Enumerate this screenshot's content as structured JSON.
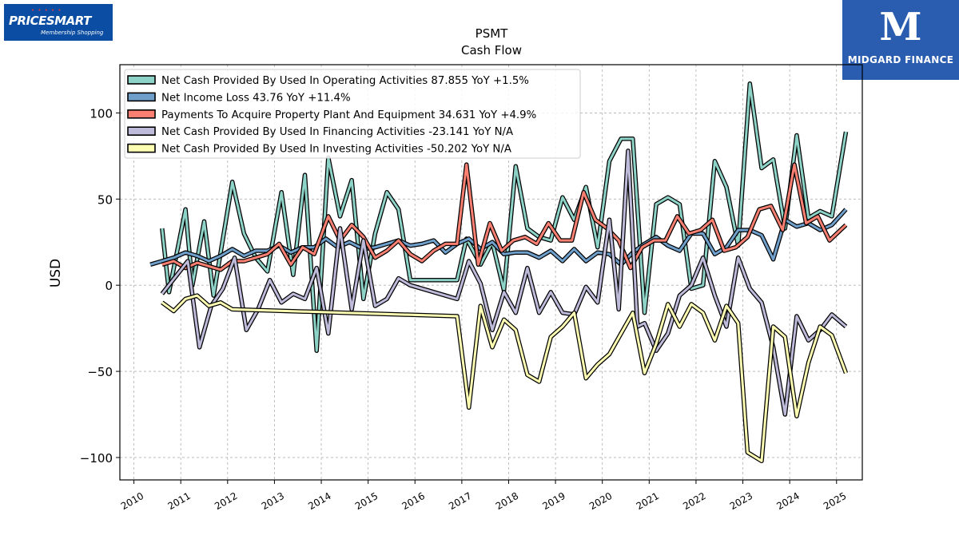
{
  "logos": {
    "left_brand": "PRICESMART",
    "left_tagline": "Membership Shopping",
    "right_name": "MIDGARD FINANCE"
  },
  "chart_data": {
    "type": "line",
    "title": "PSMT",
    "subtitle": "Cash Flow",
    "xlabel": "",
    "ylabel": "USD",
    "xlim": [
      2009.7,
      2025.55
    ],
    "ylim": [
      -113,
      128
    ],
    "yticks": [
      -100,
      -50,
      0,
      50,
      100
    ],
    "ytick_labels": [
      "−100",
      "−50",
      "0",
      "50",
      "100"
    ],
    "xticks": [
      2010,
      2011,
      2012,
      2013,
      2014,
      2015,
      2016,
      2017,
      2018,
      2019,
      2020,
      2021,
      2022,
      2023,
      2024,
      2025
    ],
    "grid": true,
    "legend_position": "top-left",
    "series": [
      {
        "name": "Net Cash Provided By Used In Operating Activities  87.855 YoY +1.5%",
        "color": "#8dd3c7",
        "points": [
          [
            2010.6,
            33
          ],
          [
            2010.75,
            -4
          ],
          [
            2011.1,
            44
          ],
          [
            2011.25,
            0
          ],
          [
            2011.5,
            37
          ],
          [
            2011.7,
            -6
          ],
          [
            2012.1,
            60
          ],
          [
            2012.35,
            30
          ],
          [
            2012.6,
            16
          ],
          [
            2012.85,
            8
          ],
          [
            2013.15,
            54
          ],
          [
            2013.4,
            6
          ],
          [
            2013.65,
            64
          ],
          [
            2013.9,
            -38
          ],
          [
            2014.15,
            74
          ],
          [
            2014.4,
            40
          ],
          [
            2014.65,
            61
          ],
          [
            2014.9,
            -8
          ],
          [
            2015.15,
            30
          ],
          [
            2015.4,
            54
          ],
          [
            2015.65,
            44
          ],
          [
            2015.9,
            3
          ],
          [
            2016.9,
            3
          ],
          [
            2017.1,
            27
          ],
          [
            2017.4,
            12
          ],
          [
            2017.65,
            25
          ],
          [
            2017.9,
            -3
          ],
          [
            2018.15,
            69
          ],
          [
            2018.4,
            33
          ],
          [
            2018.65,
            28
          ],
          [
            2018.9,
            26
          ],
          [
            2019.15,
            51
          ],
          [
            2019.4,
            38
          ],
          [
            2019.65,
            57
          ],
          [
            2019.9,
            22
          ],
          [
            2020.15,
            72
          ],
          [
            2020.4,
            85
          ],
          [
            2020.65,
            85
          ],
          [
            2020.9,
            -16
          ],
          [
            2021.15,
            47
          ],
          [
            2021.4,
            51
          ],
          [
            2021.65,
            47
          ],
          [
            2021.9,
            -2
          ],
          [
            2022.15,
            0
          ],
          [
            2022.4,
            72
          ],
          [
            2022.65,
            57
          ],
          [
            2022.9,
            23
          ],
          [
            2023.15,
            117
          ],
          [
            2023.4,
            68
          ],
          [
            2023.65,
            73
          ],
          [
            2023.9,
            33
          ],
          [
            2024.15,
            87
          ],
          [
            2024.4,
            39
          ],
          [
            2024.65,
            43
          ],
          [
            2024.9,
            40
          ],
          [
            2025.2,
            89
          ]
        ]
      },
      {
        "name": "Net Income Loss  43.76 YoY +11.4%",
        "color": "#6fa0cc",
        "points": [
          [
            2010.35,
            12
          ],
          [
            2010.6,
            14
          ],
          [
            2010.85,
            16
          ],
          [
            2011.1,
            19
          ],
          [
            2011.35,
            17
          ],
          [
            2011.6,
            14
          ],
          [
            2011.85,
            17
          ],
          [
            2012.1,
            21
          ],
          [
            2012.35,
            17
          ],
          [
            2012.6,
            20
          ],
          [
            2012.85,
            20
          ],
          [
            2013.1,
            23
          ],
          [
            2013.35,
            19
          ],
          [
            2013.6,
            22
          ],
          [
            2013.85,
            22
          ],
          [
            2014.1,
            27
          ],
          [
            2014.35,
            22
          ],
          [
            2014.6,
            25
          ],
          [
            2014.9,
            21
          ],
          [
            2015.15,
            22
          ],
          [
            2015.4,
            24
          ],
          [
            2015.65,
            26
          ],
          [
            2015.9,
            23
          ],
          [
            2016.15,
            24
          ],
          [
            2016.4,
            26
          ],
          [
            2016.65,
            19
          ],
          [
            2016.9,
            24
          ],
          [
            2017.15,
            27
          ],
          [
            2017.4,
            21
          ],
          [
            2017.65,
            25
          ],
          [
            2017.9,
            18
          ],
          [
            2018.15,
            19
          ],
          [
            2018.4,
            19
          ],
          [
            2018.65,
            16
          ],
          [
            2018.9,
            20
          ],
          [
            2019.15,
            14
          ],
          [
            2019.4,
            21
          ],
          [
            2019.65,
            14
          ],
          [
            2019.9,
            19
          ],
          [
            2020.15,
            18
          ],
          [
            2020.4,
            12
          ],
          [
            2020.65,
            19
          ],
          [
            2020.9,
            24
          ],
          [
            2021.15,
            28
          ],
          [
            2021.4,
            23
          ],
          [
            2021.65,
            20
          ],
          [
            2021.9,
            30
          ],
          [
            2022.15,
            30
          ],
          [
            2022.4,
            18
          ],
          [
            2022.65,
            22
          ],
          [
            2022.9,
            32
          ],
          [
            2023.15,
            32
          ],
          [
            2023.4,
            29
          ],
          [
            2023.65,
            15
          ],
          [
            2023.9,
            38
          ],
          [
            2024.15,
            34
          ],
          [
            2024.4,
            36
          ],
          [
            2024.65,
            32
          ],
          [
            2024.9,
            35
          ],
          [
            2025.2,
            44
          ]
        ]
      },
      {
        "name": "Payments To Acquire Property Plant And Equipment  34.631 YoY +4.9%",
        "color": "#fb8072",
        "points": [
          [
            2010.6,
            12
          ],
          [
            2010.85,
            14
          ],
          [
            2011.1,
            10
          ],
          [
            2011.35,
            13
          ],
          [
            2011.6,
            11
          ],
          [
            2011.85,
            9
          ],
          [
            2012.1,
            14
          ],
          [
            2012.35,
            14
          ],
          [
            2012.6,
            16
          ],
          [
            2012.85,
            18
          ],
          [
            2013.1,
            24
          ],
          [
            2013.35,
            12
          ],
          [
            2013.6,
            22
          ],
          [
            2013.85,
            18
          ],
          [
            2014.15,
            40
          ],
          [
            2014.4,
            26
          ],
          [
            2014.65,
            35
          ],
          [
            2014.9,
            28
          ],
          [
            2015.15,
            16
          ],
          [
            2015.4,
            20
          ],
          [
            2015.65,
            26
          ],
          [
            2015.9,
            18
          ],
          [
            2016.15,
            14
          ],
          [
            2016.4,
            20
          ],
          [
            2016.65,
            24
          ],
          [
            2016.9,
            24
          ],
          [
            2017.1,
            70
          ],
          [
            2017.35,
            12
          ],
          [
            2017.6,
            36
          ],
          [
            2017.85,
            20
          ],
          [
            2018.1,
            26
          ],
          [
            2018.35,
            28
          ],
          [
            2018.6,
            24
          ],
          [
            2018.85,
            36
          ],
          [
            2019.1,
            26
          ],
          [
            2019.35,
            26
          ],
          [
            2019.6,
            54
          ],
          [
            2019.85,
            38
          ],
          [
            2020.1,
            33
          ],
          [
            2020.35,
            26
          ],
          [
            2020.6,
            10
          ],
          [
            2020.85,
            22
          ],
          [
            2021.1,
            26
          ],
          [
            2021.35,
            26
          ],
          [
            2021.6,
            40
          ],
          [
            2021.85,
            30
          ],
          [
            2022.1,
            32
          ],
          [
            2022.35,
            38
          ],
          [
            2022.6,
            20
          ],
          [
            2022.85,
            22
          ],
          [
            2023.1,
            28
          ],
          [
            2023.35,
            44
          ],
          [
            2023.6,
            46
          ],
          [
            2023.85,
            32
          ],
          [
            2024.1,
            70
          ],
          [
            2024.35,
            36
          ],
          [
            2024.6,
            40
          ],
          [
            2024.85,
            26
          ],
          [
            2025.2,
            35
          ]
        ]
      },
      {
        "name": "Net Cash Provided By Used In Financing Activities  -23.141 YoY N/A",
        "color": "#bebada",
        "points": [
          [
            2010.6,
            -5
          ],
          [
            2011.15,
            14
          ],
          [
            2011.4,
            -36
          ],
          [
            2011.65,
            -12
          ],
          [
            2011.9,
            -2
          ],
          [
            2012.15,
            16
          ],
          [
            2012.4,
            -26
          ],
          [
            2012.65,
            -14
          ],
          [
            2012.9,
            3
          ],
          [
            2013.15,
            -10
          ],
          [
            2013.4,
            -5
          ],
          [
            2013.65,
            -8
          ],
          [
            2013.9,
            10
          ],
          [
            2014.15,
            -28
          ],
          [
            2014.4,
            33
          ],
          [
            2014.65,
            -14
          ],
          [
            2014.9,
            26
          ],
          [
            2015.15,
            -12
          ],
          [
            2015.4,
            -8
          ],
          [
            2015.65,
            4
          ],
          [
            2015.9,
            0
          ],
          [
            2016.9,
            -8
          ],
          [
            2017.15,
            14
          ],
          [
            2017.4,
            1
          ],
          [
            2017.65,
            -26
          ],
          [
            2017.9,
            -4
          ],
          [
            2018.15,
            -16
          ],
          [
            2018.4,
            10
          ],
          [
            2018.65,
            -16
          ],
          [
            2018.9,
            -4
          ],
          [
            2019.15,
            -16
          ],
          [
            2019.4,
            -17
          ],
          [
            2019.65,
            -1
          ],
          [
            2019.9,
            -10
          ],
          [
            2020.15,
            38
          ],
          [
            2020.35,
            -14
          ],
          [
            2020.55,
            78
          ],
          [
            2020.75,
            -24
          ],
          [
            2020.9,
            -22
          ],
          [
            2021.15,
            -38
          ],
          [
            2021.4,
            -28
          ],
          [
            2021.65,
            -6
          ],
          [
            2021.9,
            0
          ],
          [
            2022.15,
            16
          ],
          [
            2022.4,
            -6
          ],
          [
            2022.65,
            -24
          ],
          [
            2022.9,
            16
          ],
          [
            2023.15,
            -2
          ],
          [
            2023.4,
            -10
          ],
          [
            2023.65,
            -36
          ],
          [
            2023.9,
            -75
          ],
          [
            2024.15,
            -18
          ],
          [
            2024.4,
            -32
          ],
          [
            2024.65,
            -26
          ],
          [
            2024.9,
            -17
          ],
          [
            2025.2,
            -24
          ]
        ]
      },
      {
        "name": "Net Cash Provided By Used In Investing Activities  -50.202 YoY N/A",
        "color": "#ffffb3",
        "points": [
          [
            2010.6,
            -10
          ],
          [
            2010.85,
            -15
          ],
          [
            2011.1,
            -8
          ],
          [
            2011.35,
            -6
          ],
          [
            2011.6,
            -12
          ],
          [
            2011.85,
            -10
          ],
          [
            2012.1,
            -14
          ],
          [
            2016.9,
            -18
          ],
          [
            2017.15,
            -71
          ],
          [
            2017.4,
            -12
          ],
          [
            2017.65,
            -36
          ],
          [
            2017.9,
            -20
          ],
          [
            2018.15,
            -26
          ],
          [
            2018.4,
            -52
          ],
          [
            2018.65,
            -56
          ],
          [
            2018.9,
            -30
          ],
          [
            2019.15,
            -24
          ],
          [
            2019.4,
            -16
          ],
          [
            2019.65,
            -54
          ],
          [
            2019.9,
            -46
          ],
          [
            2020.15,
            -40
          ],
          [
            2020.4,
            -28
          ],
          [
            2020.65,
            -16
          ],
          [
            2020.9,
            -51
          ],
          [
            2021.15,
            -34
          ],
          [
            2021.4,
            -11
          ],
          [
            2021.65,
            -24
          ],
          [
            2021.9,
            -11
          ],
          [
            2022.15,
            -16
          ],
          [
            2022.4,
            -32
          ],
          [
            2022.65,
            -12
          ],
          [
            2022.9,
            -22
          ],
          [
            2023.1,
            -97
          ],
          [
            2023.4,
            -102
          ],
          [
            2023.65,
            -24
          ],
          [
            2023.9,
            -30
          ],
          [
            2024.15,
            -76
          ],
          [
            2024.4,
            -45
          ],
          [
            2024.65,
            -24
          ],
          [
            2024.9,
            -29
          ],
          [
            2025.2,
            -51
          ]
        ]
      }
    ]
  }
}
